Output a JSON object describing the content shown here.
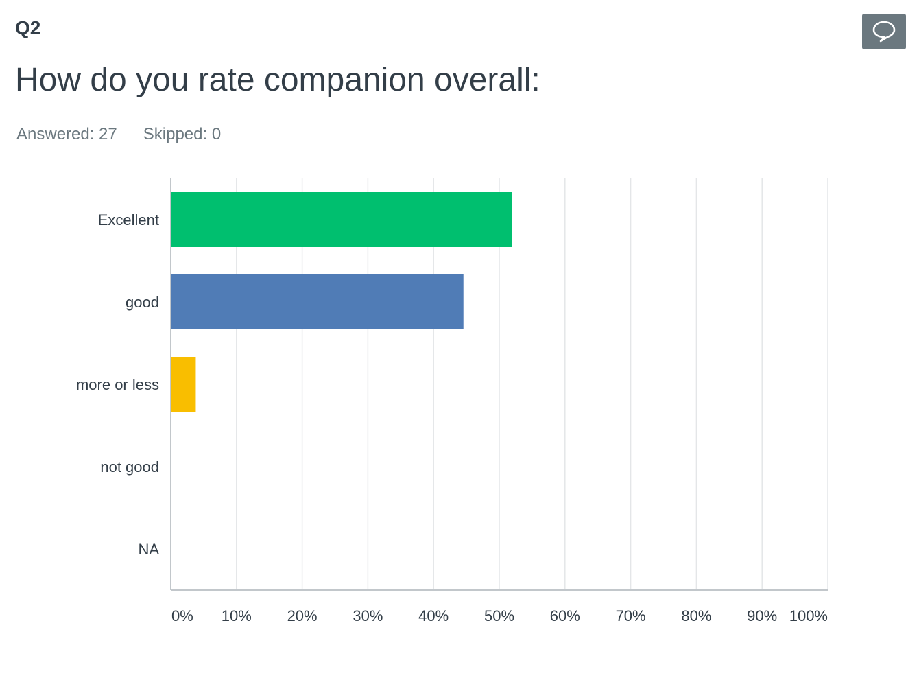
{
  "question": {
    "number": "Q2",
    "title": "How do you rate companion overall:",
    "answered_label": "Answered: 27",
    "skipped_label": "Skipped: 0"
  },
  "comment_button": {
    "icon": "speech-bubble-icon"
  },
  "chart_data": {
    "type": "bar",
    "orientation": "horizontal",
    "categories": [
      "Excellent",
      "good",
      "more or less",
      "not good",
      "NA"
    ],
    "values": [
      51.85,
      44.44,
      3.7,
      0,
      0
    ],
    "colors": [
      "#00bf6f",
      "#507cb6",
      "#f9be00",
      "#6bc8cd",
      "#ff8b4f"
    ],
    "xlim": [
      0,
      100
    ],
    "xticks": [
      "0%",
      "10%",
      "20%",
      "30%",
      "40%",
      "50%",
      "60%",
      "70%",
      "80%",
      "90%",
      "100%"
    ],
    "grid": true,
    "title": "",
    "xlabel": "",
    "ylabel": ""
  }
}
